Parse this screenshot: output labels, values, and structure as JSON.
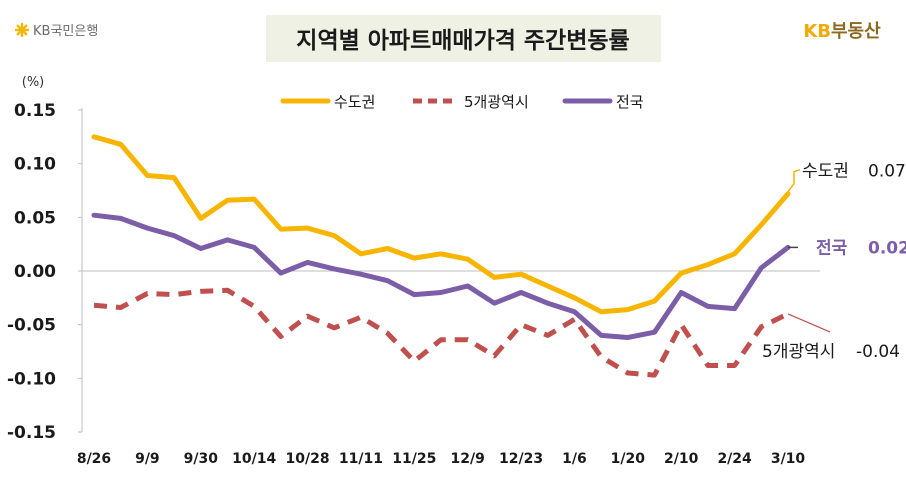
{
  "branding": {
    "bank_logo_text": "KB국민은행",
    "real_estate_logo_kb": "KB",
    "real_estate_logo_text": "부동산"
  },
  "chart_data": {
    "type": "line",
    "title": "지역별 아파트매매가격 주간변동률",
    "ylabel": "(%)",
    "ylim": [
      -0.15,
      0.15
    ],
    "y_ticks": [
      "0.15",
      "0.10",
      "0.05",
      "0.00",
      "-0.05",
      "-0.10",
      "-0.15"
    ],
    "x_tick_labels": [
      "8/26",
      "9/9",
      "9/30",
      "10/14",
      "10/28",
      "11/11",
      "11/25",
      "12/9",
      "12/23",
      "1/6",
      "1/20",
      "2/10",
      "2/24",
      "3/10"
    ],
    "series": [
      {
        "name": "수도권",
        "color": "#f7b500",
        "style": "solid",
        "values": [
          0.125,
          0.118,
          0.089,
          0.087,
          0.049,
          0.066,
          0.067,
          0.039,
          0.04,
          0.033,
          0.016,
          0.021,
          0.012,
          0.016,
          0.011,
          -0.006,
          -0.003,
          -0.014,
          -0.025,
          -0.038,
          -0.036,
          -0.028,
          -0.002,
          0.006,
          0.016,
          0.043,
          0.072
        ]
      },
      {
        "name": "5개광역시",
        "color": "#c0504d",
        "style": "dashed",
        "values": [
          -0.032,
          -0.034,
          -0.021,
          -0.022,
          -0.019,
          -0.018,
          -0.033,
          -0.061,
          -0.042,
          -0.053,
          -0.043,
          -0.058,
          -0.084,
          -0.064,
          -0.064,
          -0.079,
          -0.05,
          -0.06,
          -0.045,
          -0.08,
          -0.095,
          -0.097,
          -0.05,
          -0.088,
          -0.088,
          -0.052,
          -0.04
        ]
      },
      {
        "name": "전국",
        "color": "#7b5ea7",
        "style": "solid",
        "values": [
          0.052,
          0.049,
          0.04,
          0.033,
          0.021,
          0.029,
          0.022,
          -0.002,
          0.008,
          0.002,
          -0.003,
          -0.009,
          -0.022,
          -0.02,
          -0.014,
          -0.03,
          -0.02,
          -0.03,
          -0.038,
          -0.06,
          -0.062,
          -0.057,
          -0.02,
          -0.033,
          -0.035,
          0.003,
          0.022
        ]
      }
    ],
    "end_labels": [
      {
        "series": "수도권",
        "name": "수도권",
        "value": "0.07"
      },
      {
        "series": "전국",
        "name": "전국",
        "value": "0.02"
      },
      {
        "series": "5개광역시",
        "name": "5개광역시",
        "value": "-0.04"
      }
    ]
  }
}
